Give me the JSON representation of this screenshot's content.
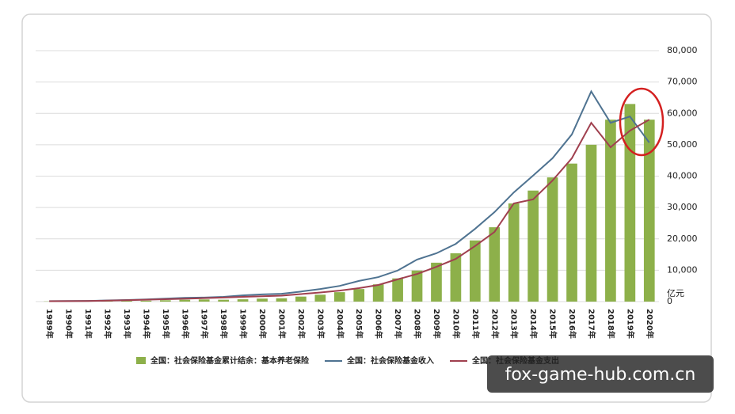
{
  "chart_data": {
    "type": "bar_line",
    "categories": [
      "1989年",
      "1990年",
      "1991年",
      "1992年",
      "1993年",
      "1994年",
      "1995年",
      "1996年",
      "1997年",
      "1998年",
      "1999年",
      "2000年",
      "2001年",
      "2002年",
      "2003年",
      "2004年",
      "2005年",
      "2006年",
      "2007年",
      "2008年",
      "2009年",
      "2010年",
      "2011年",
      "2012年",
      "2013年",
      "2014年",
      "2015年",
      "2016年",
      "2017年",
      "2018年",
      "2019年",
      "2020年"
    ],
    "series": [
      {
        "name": "全国：社会保险基金累计结余：基本养老保险",
        "type": "bar",
        "color": "#8db04a",
        "values": [
          70,
          100,
          140,
          220,
          260,
          300,
          430,
          580,
          680,
          590,
          730,
          950,
          1050,
          1600,
          2200,
          3000,
          4000,
          5500,
          7400,
          9900,
          12400,
          15400,
          19500,
          23700,
          31300,
          35400,
          39600,
          44000,
          50000,
          58000,
          63000,
          58000
        ]
      },
      {
        "name": "全国：社会保险基金收入",
        "type": "line",
        "color": "#4f7391",
        "values": [
          150,
          180,
          230,
          370,
          500,
          700,
          950,
          1200,
          1300,
          1500,
          2000,
          2300,
          2500,
          3200,
          4000,
          5000,
          6600,
          7800,
          9900,
          13400,
          15400,
          18400,
          23200,
          28500,
          34800,
          40200,
          45700,
          53300,
          67000,
          57000,
          59000,
          50700
        ]
      },
      {
        "name": "全国：社会保险基金支出",
        "type": "line",
        "color": "#a0404f",
        "values": [
          120,
          150,
          200,
          300,
          450,
          600,
          750,
          900,
          1100,
          1300,
          1500,
          1700,
          1900,
          2400,
          2900,
          3500,
          4300,
          5300,
          7100,
          8800,
          11100,
          13600,
          17700,
          22200,
          31300,
          32600,
          38600,
          45700,
          57000,
          49200,
          54500,
          58000
        ]
      }
    ],
    "y_unit": "亿元",
    "ylim": [
      0,
      80000
    ],
    "yticks": [
      0,
      {
        "value": 10000,
        "label": "10,000"
      },
      {
        "value": 20000,
        "label": "20,000"
      },
      {
        "value": 30000,
        "label": "30,000"
      },
      {
        "value": 40000,
        "label": "40,000"
      },
      {
        "value": 50000,
        "label": "50,000"
      },
      {
        "value": 60000,
        "label": "60,000"
      },
      {
        "value": 70000,
        "label": "70,000"
      },
      {
        "value": 80000,
        "label": "80,000"
      }
    ],
    "grid": true,
    "watermark": "fox-game-hub.com.cn"
  }
}
